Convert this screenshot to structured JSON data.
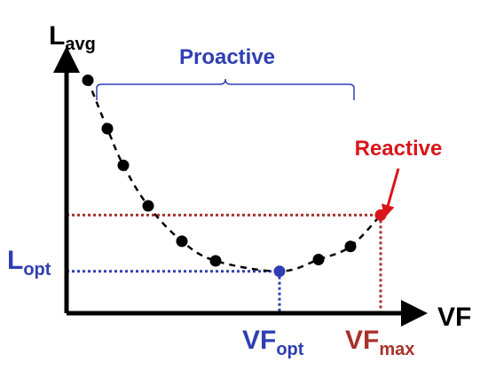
{
  "chart_data": {
    "type": "scatter",
    "axes": {
      "y_label_main": "L",
      "y_label_sub": "avg",
      "x_label": "VF",
      "ticks_visible": false,
      "grid": false,
      "legend": "none"
    },
    "series": [
      {
        "points": [
          {
            "x": 0.06,
            "y": 0.89
          },
          {
            "x": 0.115,
            "y": 0.705
          },
          {
            "x": 0.16,
            "y": 0.565
          },
          {
            "x": 0.23,
            "y": 0.41
          },
          {
            "x": 0.325,
            "y": 0.275
          },
          {
            "x": 0.42,
            "y": 0.2
          },
          {
            "x": 0.6,
            "y": 0.16
          },
          {
            "x": 0.71,
            "y": 0.205
          },
          {
            "x": 0.8,
            "y": 0.255
          }
        ],
        "color": "#000000",
        "fitted_curve": "dashed"
      }
    ],
    "highlighted_points": [
      {
        "x": 0.6,
        "y": 0.16,
        "color": "#2f3fb2"
      },
      {
        "x": 0.885,
        "y": 0.375,
        "color": "#d8161a"
      }
    ],
    "reference_lines": {
      "optimum": {
        "color": "#2f3fb2",
        "label_main": "L",
        "label_sub": "opt",
        "x_label_main": "VF",
        "x_label_sub": "opt"
      },
      "max": {
        "color": "#a8322a",
        "x_label_main": "VF",
        "x_label_sub": "max"
      }
    },
    "annotations": [
      {
        "text": "Proactive",
        "color": "#2f3fb2",
        "type": "brace"
      },
      {
        "text": "Reactive",
        "color": "#d8161a",
        "type": "arrow"
      }
    ]
  }
}
